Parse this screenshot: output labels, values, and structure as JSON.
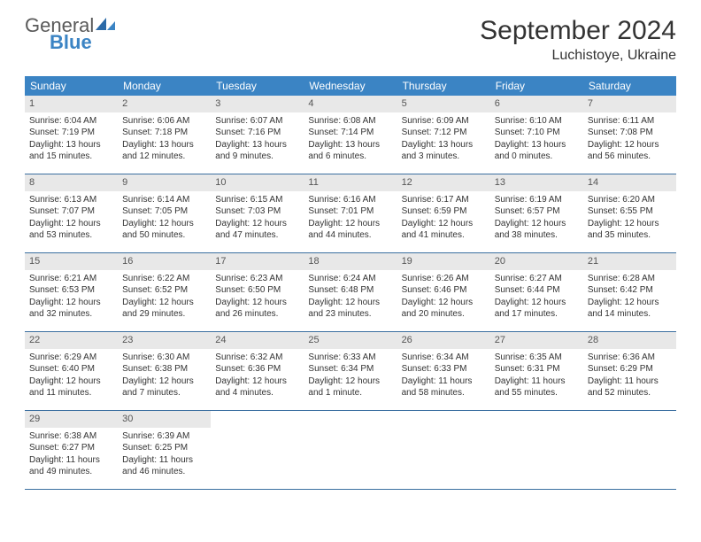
{
  "logo": {
    "text1": "General",
    "text2": "Blue"
  },
  "title": "September 2024",
  "location": "Luchistoye, Ukraine",
  "theme": {
    "header_bg": "#3b84c4",
    "header_text": "#ffffff",
    "daynum_bg": "#e8e8e8",
    "daynum_text": "#555555",
    "body_text": "#333333",
    "row_border": "#3b6fa0",
    "background": "#ffffff",
    "title_fontsize": 30,
    "location_fontsize": 16,
    "weekday_fontsize": 12,
    "daynum_fontsize": 11,
    "body_fontsize": 10
  },
  "weekdays": [
    "Sunday",
    "Monday",
    "Tuesday",
    "Wednesday",
    "Thursday",
    "Friday",
    "Saturday"
  ],
  "weeks": [
    [
      {
        "n": "1",
        "sunrise": "Sunrise: 6:04 AM",
        "sunset": "Sunset: 7:19 PM",
        "daylight": "Daylight: 13 hours and 15 minutes."
      },
      {
        "n": "2",
        "sunrise": "Sunrise: 6:06 AM",
        "sunset": "Sunset: 7:18 PM",
        "daylight": "Daylight: 13 hours and 12 minutes."
      },
      {
        "n": "3",
        "sunrise": "Sunrise: 6:07 AM",
        "sunset": "Sunset: 7:16 PM",
        "daylight": "Daylight: 13 hours and 9 minutes."
      },
      {
        "n": "4",
        "sunrise": "Sunrise: 6:08 AM",
        "sunset": "Sunset: 7:14 PM",
        "daylight": "Daylight: 13 hours and 6 minutes."
      },
      {
        "n": "5",
        "sunrise": "Sunrise: 6:09 AM",
        "sunset": "Sunset: 7:12 PM",
        "daylight": "Daylight: 13 hours and 3 minutes."
      },
      {
        "n": "6",
        "sunrise": "Sunrise: 6:10 AM",
        "sunset": "Sunset: 7:10 PM",
        "daylight": "Daylight: 13 hours and 0 minutes."
      },
      {
        "n": "7",
        "sunrise": "Sunrise: 6:11 AM",
        "sunset": "Sunset: 7:08 PM",
        "daylight": "Daylight: 12 hours and 56 minutes."
      }
    ],
    [
      {
        "n": "8",
        "sunrise": "Sunrise: 6:13 AM",
        "sunset": "Sunset: 7:07 PM",
        "daylight": "Daylight: 12 hours and 53 minutes."
      },
      {
        "n": "9",
        "sunrise": "Sunrise: 6:14 AM",
        "sunset": "Sunset: 7:05 PM",
        "daylight": "Daylight: 12 hours and 50 minutes."
      },
      {
        "n": "10",
        "sunrise": "Sunrise: 6:15 AM",
        "sunset": "Sunset: 7:03 PM",
        "daylight": "Daylight: 12 hours and 47 minutes."
      },
      {
        "n": "11",
        "sunrise": "Sunrise: 6:16 AM",
        "sunset": "Sunset: 7:01 PM",
        "daylight": "Daylight: 12 hours and 44 minutes."
      },
      {
        "n": "12",
        "sunrise": "Sunrise: 6:17 AM",
        "sunset": "Sunset: 6:59 PM",
        "daylight": "Daylight: 12 hours and 41 minutes."
      },
      {
        "n": "13",
        "sunrise": "Sunrise: 6:19 AM",
        "sunset": "Sunset: 6:57 PM",
        "daylight": "Daylight: 12 hours and 38 minutes."
      },
      {
        "n": "14",
        "sunrise": "Sunrise: 6:20 AM",
        "sunset": "Sunset: 6:55 PM",
        "daylight": "Daylight: 12 hours and 35 minutes."
      }
    ],
    [
      {
        "n": "15",
        "sunrise": "Sunrise: 6:21 AM",
        "sunset": "Sunset: 6:53 PM",
        "daylight": "Daylight: 12 hours and 32 minutes."
      },
      {
        "n": "16",
        "sunrise": "Sunrise: 6:22 AM",
        "sunset": "Sunset: 6:52 PM",
        "daylight": "Daylight: 12 hours and 29 minutes."
      },
      {
        "n": "17",
        "sunrise": "Sunrise: 6:23 AM",
        "sunset": "Sunset: 6:50 PM",
        "daylight": "Daylight: 12 hours and 26 minutes."
      },
      {
        "n": "18",
        "sunrise": "Sunrise: 6:24 AM",
        "sunset": "Sunset: 6:48 PM",
        "daylight": "Daylight: 12 hours and 23 minutes."
      },
      {
        "n": "19",
        "sunrise": "Sunrise: 6:26 AM",
        "sunset": "Sunset: 6:46 PM",
        "daylight": "Daylight: 12 hours and 20 minutes."
      },
      {
        "n": "20",
        "sunrise": "Sunrise: 6:27 AM",
        "sunset": "Sunset: 6:44 PM",
        "daylight": "Daylight: 12 hours and 17 minutes."
      },
      {
        "n": "21",
        "sunrise": "Sunrise: 6:28 AM",
        "sunset": "Sunset: 6:42 PM",
        "daylight": "Daylight: 12 hours and 14 minutes."
      }
    ],
    [
      {
        "n": "22",
        "sunrise": "Sunrise: 6:29 AM",
        "sunset": "Sunset: 6:40 PM",
        "daylight": "Daylight: 12 hours and 11 minutes."
      },
      {
        "n": "23",
        "sunrise": "Sunrise: 6:30 AM",
        "sunset": "Sunset: 6:38 PM",
        "daylight": "Daylight: 12 hours and 7 minutes."
      },
      {
        "n": "24",
        "sunrise": "Sunrise: 6:32 AM",
        "sunset": "Sunset: 6:36 PM",
        "daylight": "Daylight: 12 hours and 4 minutes."
      },
      {
        "n": "25",
        "sunrise": "Sunrise: 6:33 AM",
        "sunset": "Sunset: 6:34 PM",
        "daylight": "Daylight: 12 hours and 1 minute."
      },
      {
        "n": "26",
        "sunrise": "Sunrise: 6:34 AM",
        "sunset": "Sunset: 6:33 PM",
        "daylight": "Daylight: 11 hours and 58 minutes."
      },
      {
        "n": "27",
        "sunrise": "Sunrise: 6:35 AM",
        "sunset": "Sunset: 6:31 PM",
        "daylight": "Daylight: 11 hours and 55 minutes."
      },
      {
        "n": "28",
        "sunrise": "Sunrise: 6:36 AM",
        "sunset": "Sunset: 6:29 PM",
        "daylight": "Daylight: 11 hours and 52 minutes."
      }
    ],
    [
      {
        "n": "29",
        "sunrise": "Sunrise: 6:38 AM",
        "sunset": "Sunset: 6:27 PM",
        "daylight": "Daylight: 11 hours and 49 minutes."
      },
      {
        "n": "30",
        "sunrise": "Sunrise: 6:39 AM",
        "sunset": "Sunset: 6:25 PM",
        "daylight": "Daylight: 11 hours and 46 minutes."
      },
      null,
      null,
      null,
      null,
      null
    ]
  ]
}
